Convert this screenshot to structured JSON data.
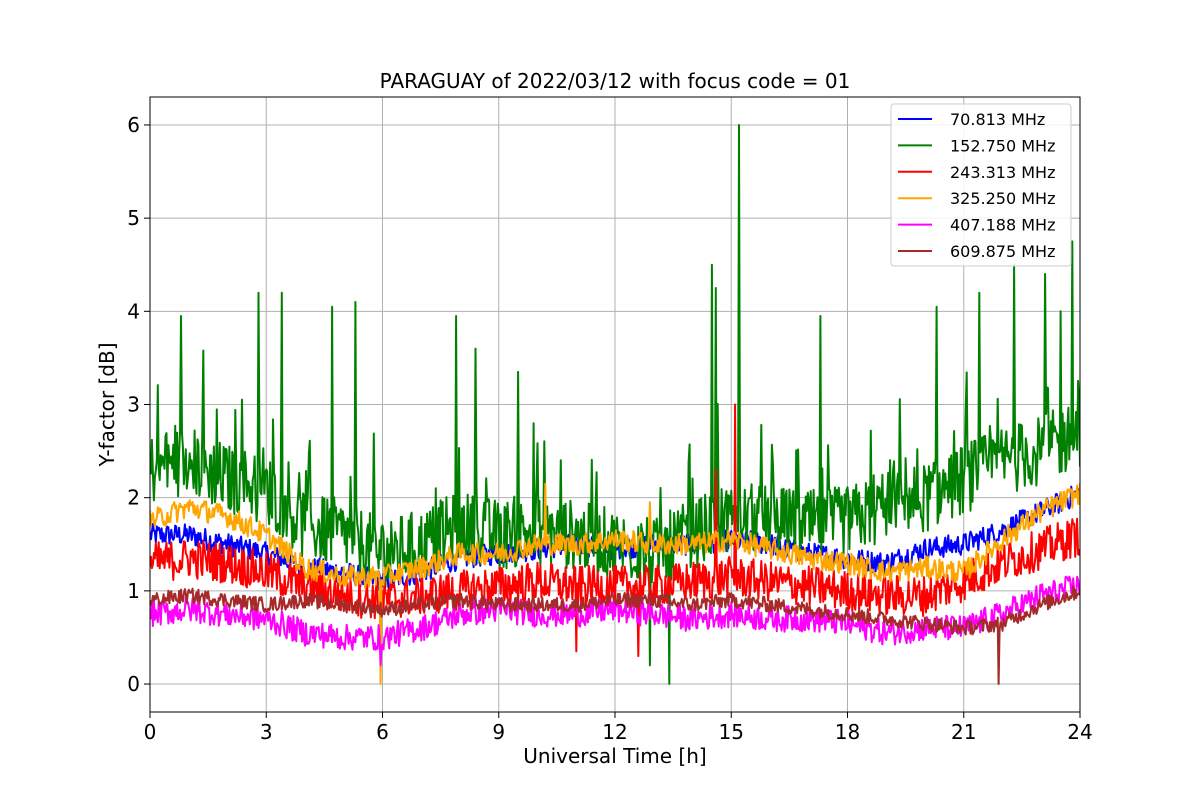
{
  "chart_data": {
    "type": "line",
    "title": "PARAGUAY of 2022/03/12 with focus code = 01",
    "xlabel": "Universal Time [h]",
    "ylabel": "Y-factor [dB]",
    "xlim": [
      0,
      24
    ],
    "ylim": [
      -0.3,
      6.3
    ],
    "xticks": [
      0,
      3,
      6,
      9,
      12,
      15,
      18,
      21,
      24
    ],
    "xtick_labels": [
      "0",
      "3",
      "6",
      "9",
      "12",
      "15",
      "18",
      "21",
      "24"
    ],
    "yticks": [
      0,
      1,
      2,
      3,
      4,
      5,
      6
    ],
    "ytick_labels": [
      "0",
      "1",
      "2",
      "3",
      "4",
      "5",
      "6"
    ],
    "grid": true,
    "legend_position": "top-right",
    "x": [
      0,
      1,
      2,
      3,
      4,
      5,
      6,
      7,
      8,
      9,
      10,
      11,
      12,
      13,
      14,
      15,
      16,
      17,
      18,
      19,
      20,
      21,
      22,
      23,
      24
    ],
    "series": [
      {
        "name": " 70.813 MHz",
        "color": "#0000ff",
        "values": [
          1.6,
          1.6,
          1.5,
          1.4,
          1.25,
          1.2,
          1.1,
          1.2,
          1.35,
          1.4,
          1.45,
          1.5,
          1.45,
          1.5,
          1.5,
          1.55,
          1.5,
          1.4,
          1.35,
          1.3,
          1.45,
          1.5,
          1.65,
          1.85,
          2.05
        ]
      },
      {
        "name": "152.750 MHz",
        "color": "#008000",
        "values": [
          2.3,
          2.4,
          2.2,
          2.1,
          1.7,
          1.6,
          1.4,
          1.5,
          1.7,
          1.6,
          1.65,
          1.6,
          1.5,
          1.4,
          1.6,
          1.8,
          1.75,
          1.7,
          1.75,
          1.9,
          2.0,
          2.2,
          2.4,
          2.5,
          2.7
        ],
        "spikes": [
          [
            0.8,
            3.95
          ],
          [
            2.8,
            4.2
          ],
          [
            3.4,
            4.2
          ],
          [
            4.7,
            4.05
          ],
          [
            5.3,
            4.1
          ],
          [
            7.9,
            3.95
          ],
          [
            8.4,
            3.6
          ],
          [
            9.5,
            3.35
          ],
          [
            14.5,
            4.5
          ],
          [
            14.6,
            4.25
          ],
          [
            15.2,
            6.0
          ],
          [
            17.3,
            3.95
          ],
          [
            20.3,
            4.05
          ],
          [
            21.4,
            4.2
          ],
          [
            22.3,
            4.5
          ],
          [
            23.1,
            4.4
          ],
          [
            23.5,
            4.0
          ],
          [
            23.8,
            4.75
          ]
        ],
        "dips": [
          [
            12.9,
            0.2
          ],
          [
            13.4,
            0.0
          ]
        ]
      },
      {
        "name": "243.313 MHz",
        "color": "#ff0000",
        "values": [
          1.3,
          1.35,
          1.3,
          1.2,
          1.05,
          0.95,
          0.9,
          0.95,
          1.0,
          1.05,
          1.1,
          1.05,
          1.05,
          1.05,
          1.1,
          1.15,
          1.1,
          1.05,
          1.0,
          0.95,
          0.95,
          1.1,
          1.3,
          1.45,
          1.6
        ],
        "spikes": [
          [
            14.6,
            2.3
          ],
          [
            15.1,
            3.0
          ]
        ],
        "dips": [
          [
            11.0,
            0.35
          ],
          [
            12.6,
            0.3
          ]
        ]
      },
      {
        "name": "325.250 MHz",
        "color": "#ffa500",
        "values": [
          1.75,
          1.9,
          1.8,
          1.6,
          1.25,
          1.15,
          1.15,
          1.25,
          1.4,
          1.4,
          1.5,
          1.5,
          1.55,
          1.5,
          1.5,
          1.55,
          1.45,
          1.35,
          1.3,
          1.2,
          1.25,
          1.2,
          1.55,
          1.85,
          2.05
        ],
        "spikes": [
          [
            10.2,
            2.15
          ],
          [
            12.9,
            1.95
          ]
        ],
        "dips": [
          [
            5.95,
            0.0
          ]
        ]
      },
      {
        "name": "407.188 MHz",
        "color": "#ff00ff",
        "values": [
          0.75,
          0.8,
          0.75,
          0.7,
          0.55,
          0.5,
          0.5,
          0.6,
          0.75,
          0.8,
          0.75,
          0.75,
          0.8,
          0.75,
          0.7,
          0.75,
          0.7,
          0.7,
          0.65,
          0.55,
          0.6,
          0.6,
          0.75,
          0.95,
          1.05
        ],
        "dips": [
          [
            5.95,
            0.2
          ]
        ]
      },
      {
        "name": "609.875 MHz",
        "color": "#a52a2a",
        "values": [
          0.9,
          0.95,
          0.9,
          0.85,
          0.9,
          0.85,
          0.8,
          0.85,
          0.9,
          0.85,
          0.85,
          0.85,
          0.9,
          0.9,
          0.85,
          0.9,
          0.85,
          0.8,
          0.75,
          0.7,
          0.65,
          0.6,
          0.65,
          0.85,
          1.0
        ],
        "dips": [
          [
            21.9,
            0.0
          ]
        ]
      }
    ]
  }
}
